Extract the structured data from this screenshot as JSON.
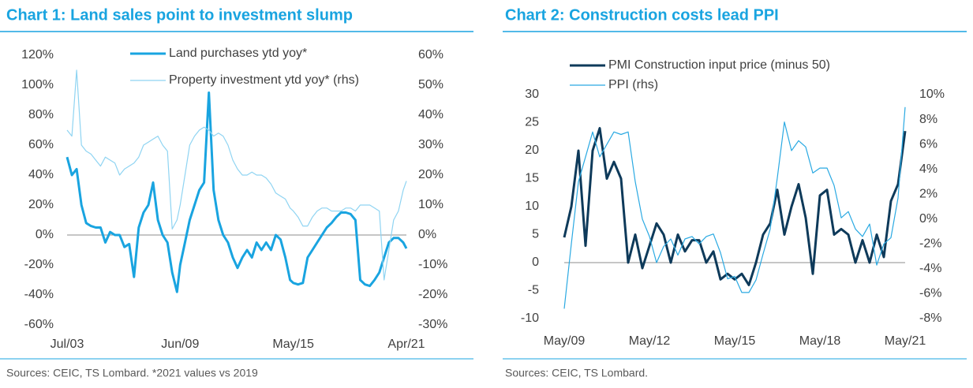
{
  "chart_data": [
    {
      "type": "line",
      "title": "Chart 1: Land sales point to investment slump",
      "source": "Sources: CEIC, TS Lombard. *2021 values vs 2019",
      "x": [
        "Jul/03",
        "Oct/03",
        "Jan/04",
        "Apr/04",
        "Jul/04",
        "Oct/04",
        "Jan/05",
        "Apr/05",
        "Jul/05",
        "Oct/05",
        "Jan/06",
        "Apr/06",
        "Jul/06",
        "Oct/06",
        "Jan/07",
        "Apr/07",
        "Jul/07",
        "Oct/07",
        "Jan/08",
        "Apr/08",
        "Jul/08",
        "Oct/08",
        "Jan/09",
        "Apr/09",
        "Jun/09",
        "Sep/09",
        "Dec/09",
        "Mar/10",
        "Jun/10",
        "Sep/10",
        "Dec/10",
        "Mar/11",
        "Jun/11",
        "Sep/11",
        "Dec/11",
        "Mar/12",
        "Jun/12",
        "Sep/12",
        "Dec/12",
        "Mar/13",
        "Jun/13",
        "Sep/13",
        "Dec/13",
        "Mar/14",
        "Jun/14",
        "Sep/14",
        "Dec/14",
        "Mar/15",
        "May/15",
        "Aug/15",
        "Nov/15",
        "Feb/16",
        "May/16",
        "Aug/16",
        "Nov/16",
        "Feb/17",
        "May/17",
        "Aug/17",
        "Nov/17",
        "Feb/18",
        "May/18",
        "Aug/18",
        "Nov/18",
        "Feb/19",
        "May/19",
        "Aug/19",
        "Nov/19",
        "Feb/20",
        "May/20",
        "Aug/20",
        "Nov/20",
        "Feb/21",
        "Apr/21"
      ],
      "xticks": [
        "Jul/03",
        "Jun/09",
        "May/15",
        "Apr/21"
      ],
      "series": [
        {
          "name": "Land purchases ytd yoy*",
          "color": "#19a4e0",
          "width": 3,
          "values": [
            52,
            40,
            44,
            20,
            8,
            6,
            5,
            5,
            -5,
            2,
            0,
            0,
            -8,
            -6,
            -28,
            5,
            15,
            20,
            35,
            10,
            0,
            -5,
            -25,
            -38,
            -20,
            -5,
            10,
            20,
            30,
            35,
            95,
            30,
            10,
            0,
            -5,
            -15,
            -22,
            -15,
            -10,
            -15,
            -5,
            -10,
            -5,
            -10,
            0,
            -3,
            -15,
            -30,
            -32,
            -33,
            -32,
            -15,
            -10,
            -5,
            0,
            5,
            8,
            12,
            15,
            15,
            14,
            10,
            -30,
            -33,
            -34,
            -30,
            -25,
            -15,
            -5,
            -2,
            -2,
            -5,
            -9
          ]
        },
        {
          "name": "Property investment ytd yoy* (rhs)",
          "color": "#8fd4f2",
          "width": 1.2,
          "axis": "y2",
          "values": [
            35,
            33,
            55,
            30,
            28,
            27,
            25,
            23,
            26,
            25,
            24,
            20,
            22,
            23,
            24,
            26,
            30,
            31,
            32,
            33,
            30,
            28,
            2,
            5,
            10,
            20,
            30,
            33,
            35,
            36,
            35,
            33,
            34,
            33,
            30,
            25,
            22,
            20,
            20,
            21,
            20,
            20,
            19,
            17,
            14,
            13,
            12,
            9,
            8,
            6,
            3,
            3,
            6,
            8,
            9,
            9,
            8,
            8,
            8,
            9,
            9,
            8,
            10,
            10,
            10,
            9,
            8,
            -15,
            -5,
            5,
            8,
            15,
            18
          ]
        }
      ],
      "ylim": [
        -60,
        120
      ],
      "yticks": [
        {
          "value": -60,
          "label": "-60%"
        },
        {
          "value": -40,
          "label": "-40%"
        },
        {
          "value": -20,
          "label": "-20%"
        },
        {
          "value": 0,
          "label": "0%"
        },
        {
          "value": 20,
          "label": "20%"
        },
        {
          "value": 40,
          "label": "40%"
        },
        {
          "value": 60,
          "label": "60%"
        },
        {
          "value": 80,
          "label": "80%"
        },
        {
          "value": 100,
          "label": "100%"
        },
        {
          "value": 120,
          "label": "120%"
        }
      ],
      "y2lim": [
        -30,
        60
      ],
      "y2ticks": [
        {
          "value": -30,
          "label": "-30%"
        },
        {
          "value": -20,
          "label": "-20%"
        },
        {
          "value": -10,
          "label": "-10%"
        },
        {
          "value": 0,
          "label": "0%"
        },
        {
          "value": 10,
          "label": "10%"
        },
        {
          "value": 20,
          "label": "20%"
        },
        {
          "value": 30,
          "label": "30%"
        },
        {
          "value": 40,
          "label": "40%"
        },
        {
          "value": 50,
          "label": "50%"
        },
        {
          "value": 60,
          "label": "60%"
        }
      ]
    },
    {
      "type": "line",
      "title": "Chart 2: Construction costs lead PPI",
      "source": "Sources: CEIC, TS Lombard.",
      "x": [
        "May/09",
        "Aug/09",
        "Nov/09",
        "Feb/10",
        "May/10",
        "Aug/10",
        "Nov/10",
        "Feb/11",
        "May/11",
        "Aug/11",
        "Nov/11",
        "Feb/12",
        "May/12",
        "Aug/12",
        "Nov/12",
        "Feb/13",
        "May/13",
        "Aug/13",
        "Nov/13",
        "Feb/14",
        "May/14",
        "Aug/14",
        "Nov/14",
        "Feb/15",
        "May/15",
        "Aug/15",
        "Nov/15",
        "Feb/16",
        "May/16",
        "Aug/16",
        "Nov/16",
        "Feb/17",
        "May/17",
        "Aug/17",
        "Nov/17",
        "Feb/18",
        "May/18",
        "Aug/18",
        "Nov/18",
        "Feb/19",
        "May/19",
        "Aug/19",
        "Nov/19",
        "Feb/20",
        "May/20",
        "Aug/20",
        "Nov/20",
        "Feb/21",
        "May/21"
      ],
      "xticks": [
        "May/09",
        "May/12",
        "May/15",
        "May/18",
        "May/21"
      ],
      "series": [
        {
          "name": "PMI Construction input price (minus 50)",
          "color": "#0e3a5a",
          "width": 3,
          "values": [
            4.5,
            10,
            20,
            3,
            20,
            24,
            15,
            18,
            15,
            0,
            5,
            -1,
            3,
            7,
            5,
            0,
            5,
            2,
            4,
            4,
            0,
            2,
            -3,
            -2,
            -3,
            -2,
            -4,
            0,
            5,
            7,
            13,
            5,
            10,
            14,
            8,
            -2,
            12,
            13,
            5,
            6,
            5,
            0,
            4,
            0,
            5,
            1,
            11,
            14,
            23.5
          ]
        },
        {
          "name": "PPI (rhs)",
          "color": "#2aa9e2",
          "width": 1.2,
          "axis": "y2",
          "values": [
            -7.2,
            -2,
            3,
            5,
            7,
            5,
            6,
            7,
            6.8,
            7,
            3,
            0,
            -1.4,
            -3.5,
            -2.2,
            -1.6,
            -2.9,
            -1.6,
            -1.4,
            -2,
            -1.4,
            -1.2,
            -2.7,
            -4.8,
            -4.6,
            -5.9,
            -5.9,
            -4.9,
            -2.8,
            -0.8,
            3.3,
            7.8,
            5.5,
            6.3,
            5.8,
            3.7,
            4.1,
            4.1,
            2.7,
            0.1,
            0.6,
            -0.8,
            -1.4,
            -0.4,
            -3.7,
            -2,
            -1.5,
            1.7,
            9
          ]
        }
      ],
      "ylim": [
        -10,
        30
      ],
      "yticks": [
        -10,
        -5,
        0,
        5,
        10,
        15,
        20,
        25,
        30
      ],
      "y2lim": [
        -8,
        10
      ],
      "y2ticks": [
        {
          "value": -8,
          "label": "-8%"
        },
        {
          "value": -6,
          "label": "-6%"
        },
        {
          "value": -4,
          "label": "-4%"
        },
        {
          "value": -2,
          "label": "-2%"
        },
        {
          "value": 0,
          "label": "0%"
        },
        {
          "value": 2,
          "label": "2%"
        },
        {
          "value": 4,
          "label": "4%"
        },
        {
          "value": 6,
          "label": "6%"
        },
        {
          "value": 8,
          "label": "8%"
        },
        {
          "value": 10,
          "label": "10%"
        }
      ]
    }
  ]
}
